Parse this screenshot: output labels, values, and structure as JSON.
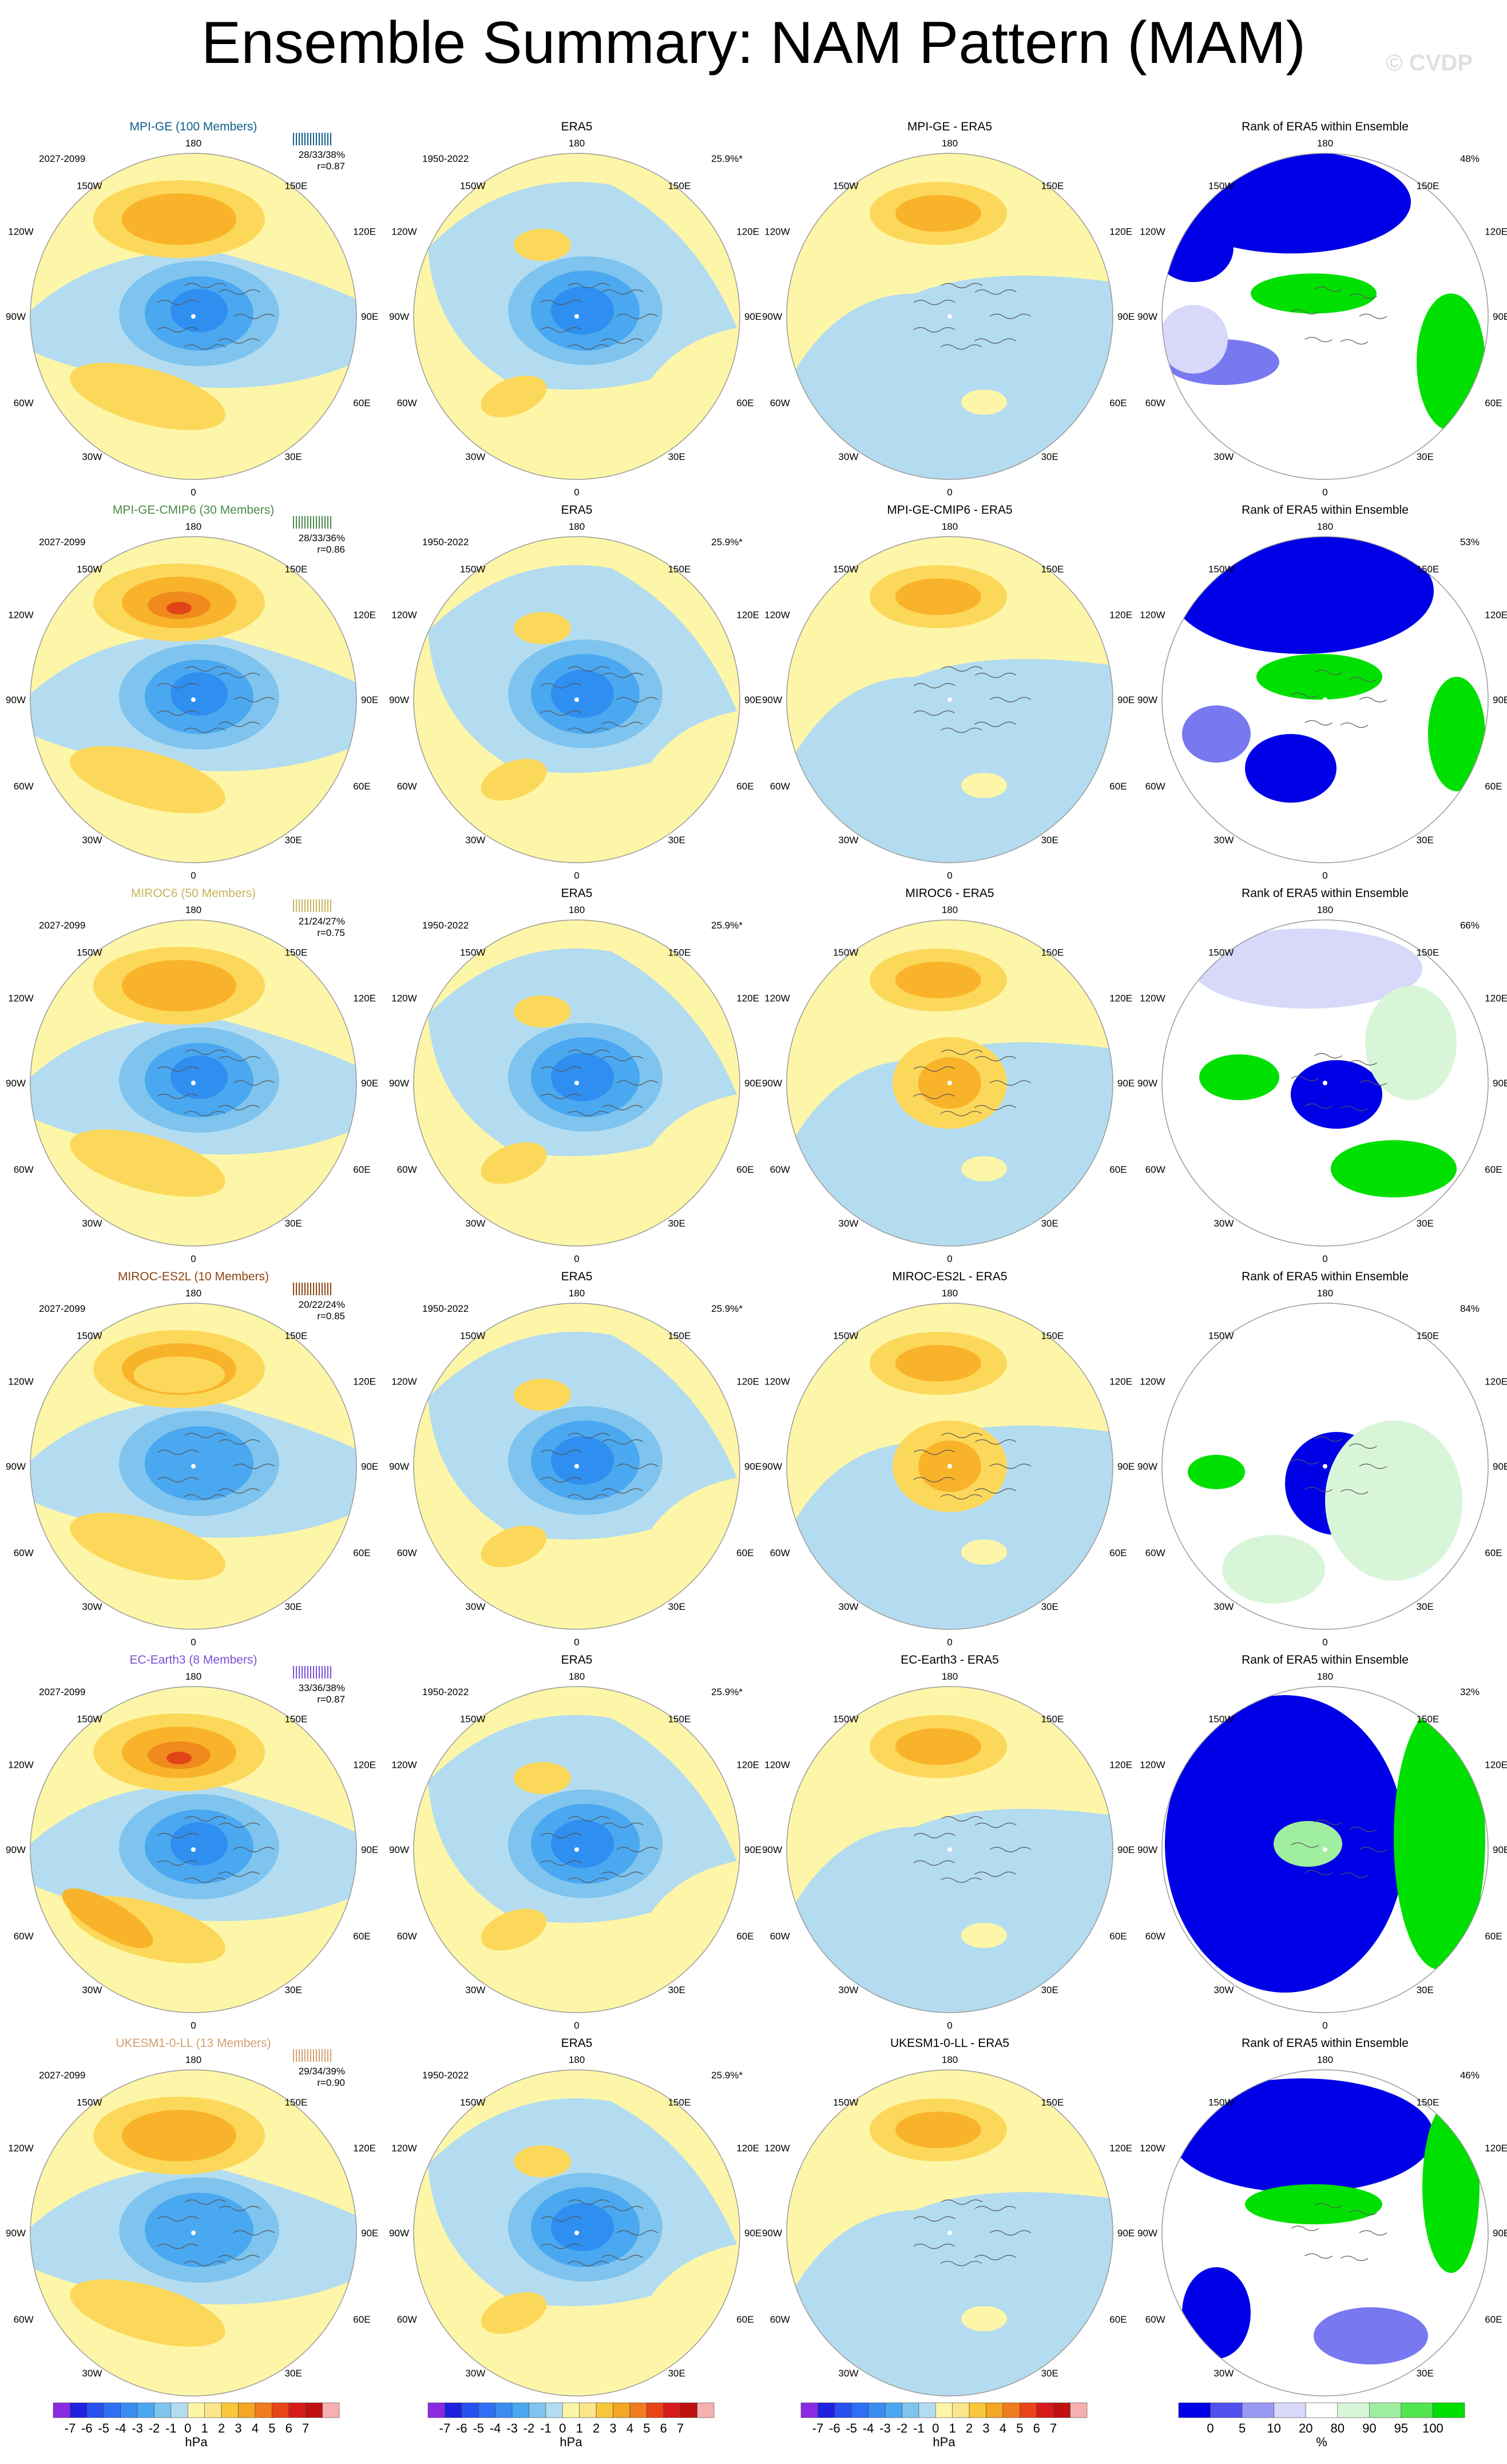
{
  "title": "Ensemble Summary: NAM Pattern (MAM)",
  "copyright": "© CVDP",
  "lon_labels": {
    "top": "180",
    "bottom": "0",
    "ul": "150W",
    "ur": "150E",
    "lu": "120W",
    "ru": "120E",
    "l": "90W",
    "r": "90E",
    "ll": "60W",
    "rl": "60E",
    "bl": "30W",
    "br": "30E"
  },
  "rows": [
    {
      "model": "MPI-GE (100 Members)",
      "model_color": "#0f5e8c",
      "period": "2027-2099",
      "stats": "28/33/38%",
      "r": "r=0.87",
      "era_period": "1950-2022",
      "era_title": "ERA5",
      "era_pct": "25.9%*",
      "diff_title": "MPI-GE - ERA5",
      "rank_title": "Rank of ERA5 within Ensemble",
      "rank_pct": "48%",
      "rank_scheme": "a"
    },
    {
      "model": "MPI-GE-CMIP6 (30 Members)",
      "model_color": "#4a8a4a",
      "period": "2027-2099",
      "stats": "28/33/36%",
      "r": "r=0.86",
      "era_period": "1950-2022",
      "era_title": "ERA5",
      "era_pct": "25.9%*",
      "diff_title": "MPI-GE-CMIP6 - ERA5",
      "rank_title": "Rank of ERA5 within Ensemble",
      "rank_pct": "53%",
      "rank_scheme": "b"
    },
    {
      "model": "MIROC6 (50 Members)",
      "model_color": "#c8b45a",
      "period": "2027-2099",
      "stats": "21/24/27%",
      "r": "r=0.75",
      "era_period": "1950-2022",
      "era_title": "ERA5",
      "era_pct": "25.9%*",
      "diff_title": "MIROC6 - ERA5",
      "rank_title": "Rank of ERA5 within Ensemble",
      "rank_pct": "66%",
      "rank_scheme": "c"
    },
    {
      "model": "MIROC-ES2L (10 Members)",
      "model_color": "#8b4513",
      "period": "2027-2099",
      "stats": "20/22/24%",
      "r": "r=0.85",
      "era_period": "1950-2022",
      "era_title": "ERA5",
      "era_pct": "25.9%*",
      "diff_title": "MIROC-ES2L - ERA5",
      "rank_title": "Rank of ERA5 within Ensemble",
      "rank_pct": "84%",
      "rank_scheme": "d"
    },
    {
      "model": "EC-Earth3 (8 Members)",
      "model_color": "#7b4fd6",
      "period": "2027-2099",
      "stats": "33/36/38%",
      "r": "r=0.87",
      "era_period": "1950-2022",
      "era_title": "ERA5",
      "era_pct": "25.9%*",
      "diff_title": "EC-Earth3 - ERA5",
      "rank_title": "Rank of ERA5 within Ensemble",
      "rank_pct": "32%",
      "rank_scheme": "e"
    },
    {
      "model": "UKESM1-0-LL (13 Members)",
      "model_color": "#d2a06e",
      "period": "2027-2099",
      "stats": "29/34/39%",
      "r": "r=0.90",
      "era_period": "1950-2022",
      "era_title": "ERA5",
      "era_pct": "25.9%*",
      "diff_title": "UKESM1-0-LL - ERA5",
      "rank_title": "Rank of ERA5 within Ensemble",
      "rank_pct": "46%",
      "rank_scheme": "f"
    }
  ],
  "hpa_colorbar": {
    "labels": [
      "-7",
      "-6",
      "-5",
      "-4",
      "-3",
      "-2",
      "-1",
      "0",
      "1",
      "2",
      "3",
      "4",
      "5",
      "6",
      "7"
    ],
    "unit": "hPa",
    "colors": [
      "#8a2be2",
      "#2020e0",
      "#2850ee",
      "#2f6ff5",
      "#3b8cf2",
      "#4aa8f0",
      "#7ec4ee",
      "#b4dcf0",
      "#fdf6a8",
      "#fce58a",
      "#f9c83a",
      "#f5a623",
      "#f07c1f",
      "#e84418",
      "#d61a1a",
      "#c01010",
      "#f6b0b0"
    ]
  },
  "rank_colorbar": {
    "labels": [
      "0",
      "5",
      "10",
      "20",
      "80",
      "90",
      "95",
      "100"
    ],
    "unit": "%",
    "colors": [
      "#0000e6",
      "#5050f0",
      "#9a9af5",
      "#d8d8fa",
      "#ffffff",
      "#d8f5d8",
      "#a0eea0",
      "#50e650",
      "#00e000"
    ]
  }
}
